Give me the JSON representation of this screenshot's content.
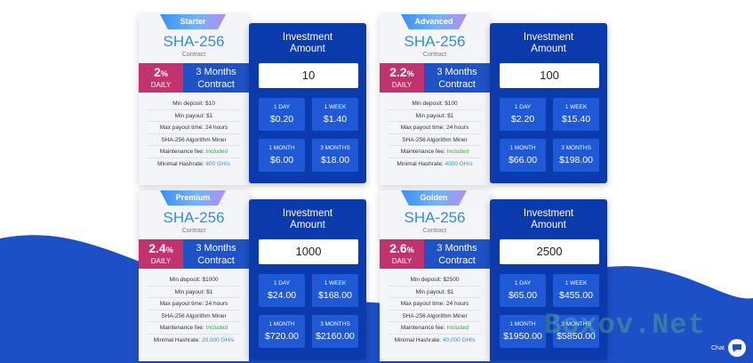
{
  "plans": [
    {
      "ribbon": "Starter",
      "algorithm": "SHA-256",
      "contract": "Contract",
      "rate": "2",
      "rate_unit": "%",
      "daily": "DAILY",
      "term_line1": "3 Months",
      "term_line2": "Contract",
      "specs": [
        {
          "text": "Min deposit: $10"
        },
        {
          "text": "Min payout: $1"
        },
        {
          "text": "Max payout time: 24 hours"
        },
        {
          "text": "SHA-256 Algorithm Miner"
        },
        {
          "text": "Maintenance fee: ",
          "value": "Included"
        },
        {
          "text": "Minimal Hashrate: ",
          "value": "400 GH/s"
        }
      ],
      "invest_title_1": "Investment",
      "invest_title_2": "Amount",
      "amount": "10",
      "earnings": [
        {
          "period": "1 DAY",
          "value": "$0.20"
        },
        {
          "period": "1 WEEK",
          "value": "$1.40"
        },
        {
          "period": "1 MONTH",
          "value": "$6.00"
        },
        {
          "period": "3 MONTHS",
          "value": "$18.00"
        }
      ]
    },
    {
      "ribbon": "Advanced",
      "algorithm": "SHA-256",
      "contract": "Contract",
      "rate": "2.2",
      "rate_unit": "%",
      "daily": "DAILY",
      "term_line1": "3 Months",
      "term_line2": "Contract",
      "specs": [
        {
          "text": "Min deposit: $100"
        },
        {
          "text": "Min payout: $1"
        },
        {
          "text": "Max payout time: 24 hours"
        },
        {
          "text": "SHA-256 Algorithm Miner"
        },
        {
          "text": "Maintenance fee: ",
          "value": "Included"
        },
        {
          "text": "Minimal Hashrate: ",
          "value": "4000 GH/s"
        }
      ],
      "invest_title_1": "Investment",
      "invest_title_2": "Amount",
      "amount": "100",
      "earnings": [
        {
          "period": "1 DAY",
          "value": "$2.20"
        },
        {
          "period": "1 WEEK",
          "value": "$15.40"
        },
        {
          "period": "1 MONTH",
          "value": "$66.00"
        },
        {
          "period": "3 MONTHS",
          "value": "$198.00"
        }
      ]
    },
    {
      "ribbon": "Premium",
      "algorithm": "SHA-256",
      "contract": "Contract",
      "rate": "2.4",
      "rate_unit": "%",
      "daily": "DAILY",
      "term_line1": "3 Months",
      "term_line2": "Contract",
      "specs": [
        {
          "text": "Min deposit: $1000"
        },
        {
          "text": "Min payout: $1"
        },
        {
          "text": "Max payout time: 24 hours"
        },
        {
          "text": "SHA-256 Algorithm Miner"
        },
        {
          "text": "Maintenance fee: ",
          "value": "Included"
        },
        {
          "text": "Minimal Hashrate: ",
          "value": "20,000 GH/s"
        }
      ],
      "invest_title_1": "Investment",
      "invest_title_2": "Amount",
      "amount": "1000",
      "earnings": [
        {
          "period": "1 DAY",
          "value": "$24.00"
        },
        {
          "period": "1 WEEK",
          "value": "$168.00"
        },
        {
          "period": "1 MONTH",
          "value": "$720.00"
        },
        {
          "period": "3 MONTHS",
          "value": "$2160.00"
        }
      ]
    },
    {
      "ribbon": "Golden",
      "algorithm": "SHA-256",
      "contract": "Contract",
      "rate": "2.6",
      "rate_unit": "%",
      "daily": "DAILY",
      "term_line1": "3 Months",
      "term_line2": "Contract",
      "specs": [
        {
          "text": "Min deposit: $2500"
        },
        {
          "text": "Min payout: $1"
        },
        {
          "text": "Max payout time: 24 hours"
        },
        {
          "text": "SHA-256 Algorithm Miner"
        },
        {
          "text": "Maintenance fee: ",
          "value": "Included"
        },
        {
          "text": "Minimal Hashrate: ",
          "value": "40,000 GH/s"
        }
      ],
      "invest_title_1": "Investment",
      "invest_title_2": "Amount",
      "amount": "2500",
      "earnings": [
        {
          "period": "1 DAY",
          "value": "$65.00"
        },
        {
          "period": "1 WEEK",
          "value": "$455.00"
        },
        {
          "period": "1 MONTH",
          "value": "$1950.00"
        },
        {
          "period": "3 MONTHS",
          "value": "$5850.00"
        }
      ]
    }
  ],
  "watermark": "Boxov.Net",
  "chat": {
    "label": "Chat",
    "icon": "chat-bubble-icon"
  },
  "colors": {
    "accent_blue": "#2f8ee0",
    "panel_blue": "#0b3aad",
    "rate_magenta": "#c2326f",
    "included_green": "#2fae3f",
    "wave_blue": "#1d4fc6"
  }
}
